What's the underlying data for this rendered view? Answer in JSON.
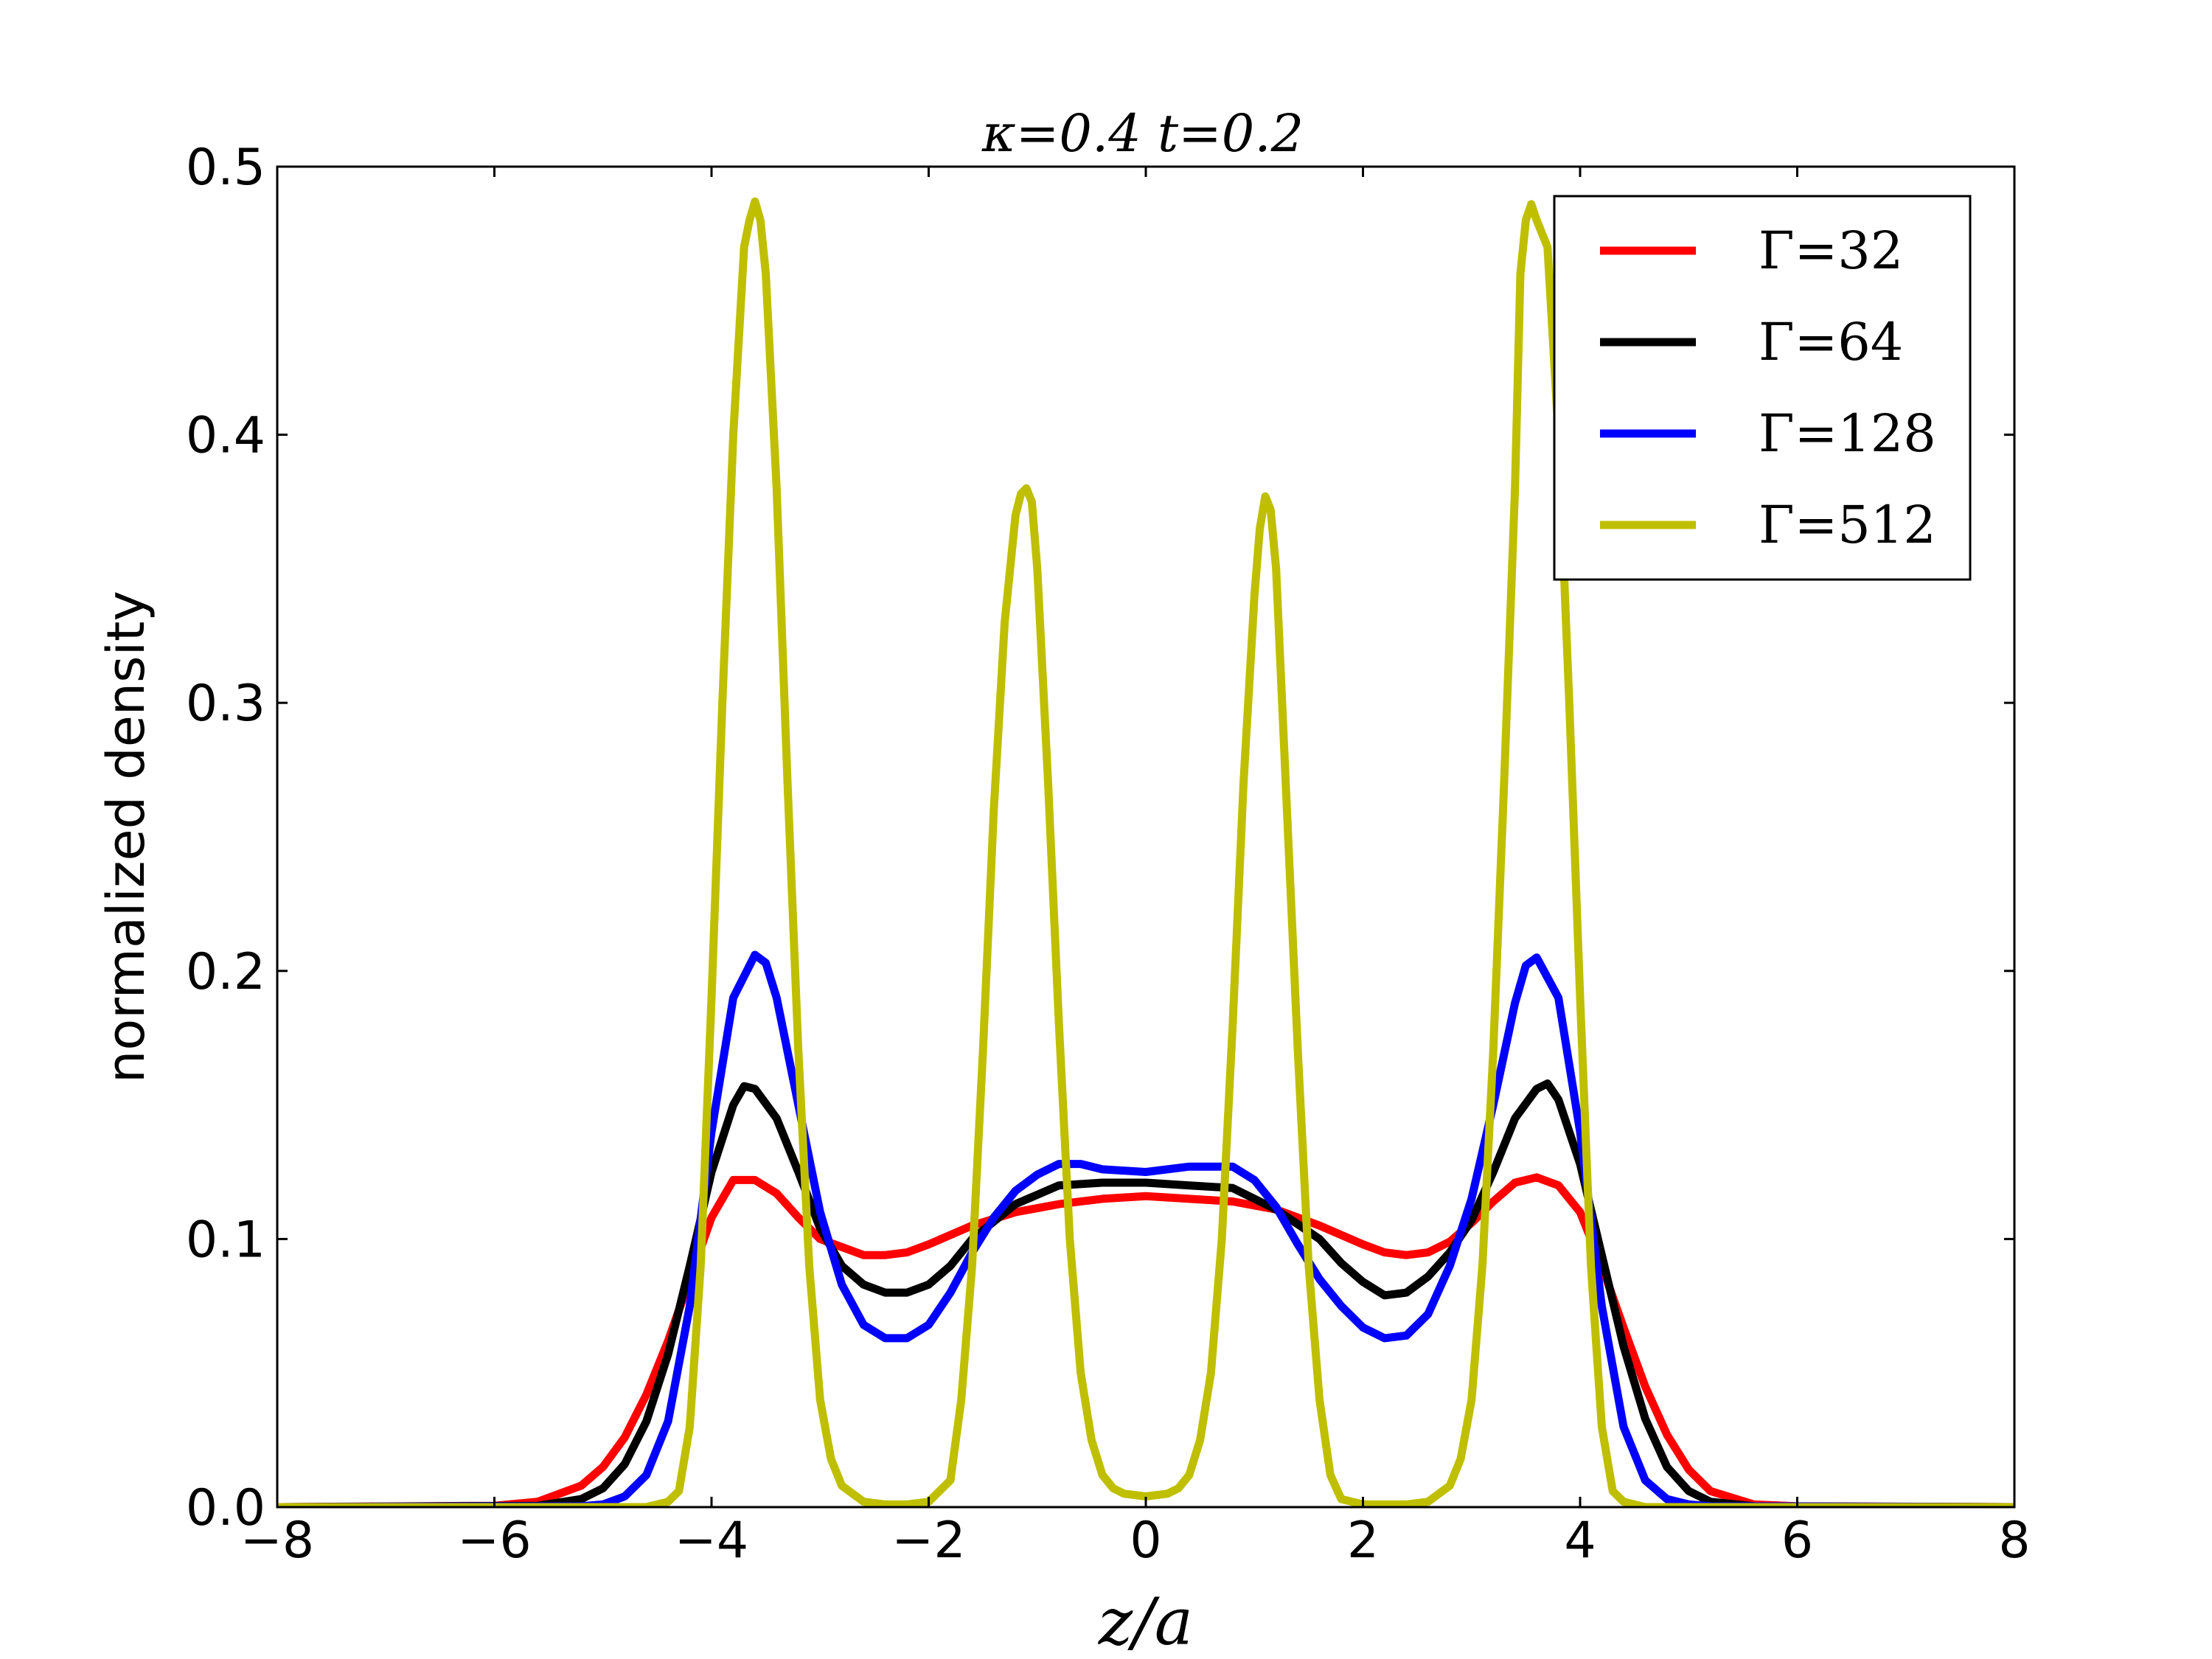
{
  "chart_data": {
    "type": "line",
    "title": "κ=0.4 t=0.2",
    "xlabel": "z/a",
    "ylabel": "normalized density",
    "xlim": [
      -8,
      8
    ],
    "ylim": [
      0,
      0.5
    ],
    "x_ticks": [
      -8,
      -6,
      -4,
      -2,
      0,
      2,
      4,
      6,
      8
    ],
    "x_tick_labels": [
      "−8",
      "−6",
      "−4",
      "−2",
      "0",
      "2",
      "4",
      "6",
      "8"
    ],
    "y_ticks": [
      0,
      0.1,
      0.2,
      0.3,
      0.4,
      0.5
    ],
    "y_tick_labels": [
      "0.0",
      "0.1",
      "0.2",
      "0.3",
      "0.4",
      "0.5"
    ],
    "grid": false,
    "legend_position": "top-right",
    "series": [
      {
        "name": "Γ=32",
        "color": "#ff0000",
        "x": [
          -8,
          -6,
          -5.6,
          -5.2,
          -5.0,
          -4.8,
          -4.6,
          -4.4,
          -4.2,
          -4.0,
          -3.8,
          -3.6,
          -3.4,
          -3.2,
          -3.0,
          -2.8,
          -2.6,
          -2.4,
          -2.2,
          -2.0,
          -1.6,
          -1.2,
          -0.8,
          -0.4,
          0,
          0.4,
          0.8,
          1.2,
          1.6,
          2.0,
          2.2,
          2.4,
          2.6,
          2.8,
          3.0,
          3.2,
          3.4,
          3.6,
          3.8,
          4.0,
          4.2,
          4.4,
          4.6,
          4.8,
          5.0,
          5.2,
          5.6,
          6.0,
          8
        ],
        "y": [
          0.0,
          0.0005,
          0.002,
          0.008,
          0.015,
          0.026,
          0.042,
          0.062,
          0.085,
          0.108,
          0.122,
          0.122,
          0.117,
          0.108,
          0.1,
          0.097,
          0.094,
          0.094,
          0.095,
          0.098,
          0.105,
          0.11,
          0.113,
          0.115,
          0.116,
          0.115,
          0.114,
          0.111,
          0.105,
          0.098,
          0.095,
          0.094,
          0.095,
          0.099,
          0.106,
          0.114,
          0.121,
          0.123,
          0.12,
          0.11,
          0.09,
          0.067,
          0.045,
          0.027,
          0.014,
          0.006,
          0.001,
          0.0003,
          0.0
        ]
      },
      {
        "name": "Γ=64",
        "color": "#000000",
        "x": [
          -8,
          -5.6,
          -5.2,
          -5.0,
          -4.8,
          -4.6,
          -4.4,
          -4.2,
          -4.0,
          -3.8,
          -3.7,
          -3.6,
          -3.4,
          -3.2,
          -3.0,
          -2.8,
          -2.6,
          -2.4,
          -2.2,
          -2.0,
          -1.8,
          -1.6,
          -1.2,
          -0.8,
          -0.4,
          0,
          0.4,
          0.8,
          1.2,
          1.6,
          1.8,
          2.0,
          2.2,
          2.4,
          2.6,
          2.8,
          3.0,
          3.2,
          3.4,
          3.6,
          3.7,
          3.8,
          4.0,
          4.2,
          4.4,
          4.6,
          4.8,
          5.0,
          5.2,
          5.6,
          8
        ],
        "y": [
          0.0,
          0.0005,
          0.003,
          0.007,
          0.016,
          0.032,
          0.057,
          0.09,
          0.125,
          0.15,
          0.157,
          0.156,
          0.145,
          0.125,
          0.104,
          0.09,
          0.083,
          0.08,
          0.08,
          0.083,
          0.09,
          0.1,
          0.113,
          0.12,
          0.121,
          0.121,
          0.12,
          0.119,
          0.111,
          0.1,
          0.091,
          0.084,
          0.079,
          0.08,
          0.086,
          0.095,
          0.107,
          0.125,
          0.145,
          0.156,
          0.158,
          0.152,
          0.128,
          0.094,
          0.06,
          0.033,
          0.015,
          0.006,
          0.002,
          0.0003,
          0.0
        ]
      },
      {
        "name": "Γ=128",
        "color": "#0000ff",
        "x": [
          -8,
          -5.2,
          -5.0,
          -4.8,
          -4.6,
          -4.4,
          -4.2,
          -4.0,
          -3.8,
          -3.6,
          -3.5,
          -3.4,
          -3.2,
          -3.0,
          -2.8,
          -2.6,
          -2.4,
          -2.2,
          -2.0,
          -1.8,
          -1.6,
          -1.4,
          -1.2,
          -1.0,
          -0.8,
          -0.6,
          -0.4,
          0,
          0.4,
          0.6,
          0.8,
          1.0,
          1.2,
          1.4,
          1.6,
          1.8,
          2.0,
          2.2,
          2.4,
          2.6,
          2.8,
          3.0,
          3.2,
          3.4,
          3.5,
          3.6,
          3.8,
          4.0,
          4.2,
          4.4,
          4.6,
          4.8,
          5.0,
          5.2,
          8
        ],
        "y": [
          0.0,
          0.0003,
          0.001,
          0.004,
          0.012,
          0.032,
          0.075,
          0.14,
          0.19,
          0.206,
          0.203,
          0.19,
          0.15,
          0.11,
          0.083,
          0.068,
          0.063,
          0.063,
          0.068,
          0.08,
          0.095,
          0.108,
          0.118,
          0.124,
          0.128,
          0.128,
          0.126,
          0.125,
          0.127,
          0.127,
          0.127,
          0.122,
          0.112,
          0.098,
          0.085,
          0.075,
          0.067,
          0.063,
          0.064,
          0.072,
          0.09,
          0.115,
          0.15,
          0.188,
          0.202,
          0.205,
          0.19,
          0.14,
          0.075,
          0.03,
          0.01,
          0.003,
          0.001,
          0.0003,
          0.0
        ]
      },
      {
        "name": "Γ=512",
        "color": "#bfbf00",
        "x": [
          -8,
          -4.6,
          -4.4,
          -4.3,
          -4.2,
          -4.1,
          -4.0,
          -3.9,
          -3.8,
          -3.7,
          -3.65,
          -3.6,
          -3.55,
          -3.5,
          -3.4,
          -3.3,
          -3.2,
          -3.1,
          -3.0,
          -2.9,
          -2.8,
          -2.6,
          -2.4,
          -2.2,
          -2.0,
          -1.8,
          -1.7,
          -1.6,
          -1.5,
          -1.4,
          -1.3,
          -1.2,
          -1.15,
          -1.1,
          -1.05,
          -1.0,
          -0.9,
          -0.8,
          -0.7,
          -0.6,
          -0.5,
          -0.4,
          -0.3,
          -0.2,
          0,
          0.2,
          0.3,
          0.4,
          0.5,
          0.6,
          0.7,
          0.8,
          0.9,
          1.0,
          1.05,
          1.1,
          1.15,
          1.2,
          1.3,
          1.4,
          1.5,
          1.6,
          1.7,
          1.8,
          2.0,
          2.2,
          2.4,
          2.6,
          2.8,
          2.9,
          3.0,
          3.1,
          3.2,
          3.3,
          3.4,
          3.45,
          3.5,
          3.55,
          3.6,
          3.7,
          3.8,
          3.9,
          4.0,
          4.1,
          4.2,
          4.3,
          4.4,
          4.6,
          8
        ],
        "y": [
          0.0,
          0.0,
          0.002,
          0.006,
          0.03,
          0.09,
          0.19,
          0.3,
          0.4,
          0.47,
          0.48,
          0.487,
          0.48,
          0.46,
          0.38,
          0.27,
          0.17,
          0.09,
          0.04,
          0.018,
          0.008,
          0.002,
          0.001,
          0.001,
          0.002,
          0.01,
          0.04,
          0.09,
          0.17,
          0.26,
          0.33,
          0.37,
          0.378,
          0.38,
          0.375,
          0.35,
          0.27,
          0.18,
          0.1,
          0.05,
          0.025,
          0.012,
          0.007,
          0.005,
          0.004,
          0.005,
          0.007,
          0.012,
          0.025,
          0.05,
          0.1,
          0.18,
          0.27,
          0.34,
          0.365,
          0.377,
          0.372,
          0.35,
          0.26,
          0.17,
          0.09,
          0.04,
          0.012,
          0.003,
          0.001,
          0.001,
          0.001,
          0.002,
          0.008,
          0.018,
          0.04,
          0.09,
          0.17,
          0.27,
          0.38,
          0.46,
          0.48,
          0.486,
          0.48,
          0.47,
          0.4,
          0.3,
          0.19,
          0.09,
          0.03,
          0.006,
          0.002,
          0.0,
          0.0
        ]
      }
    ]
  }
}
